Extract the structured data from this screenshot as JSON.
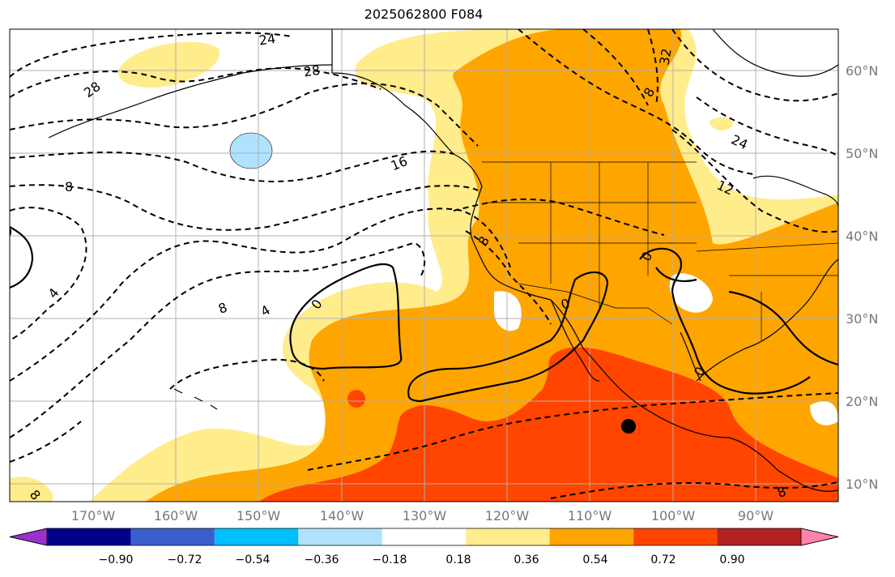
{
  "title": "2025062800 F084",
  "lat_labels": [
    "60°N",
    "50°N",
    "40°N",
    "30°N",
    "20°N",
    "10°N"
  ],
  "lon_labels": [
    "170°W",
    "160°W",
    "150°W",
    "140°W",
    "130°W",
    "120°W",
    "110°W",
    "100°W",
    "90°W"
  ],
  "colorbar": {
    "ticks": [
      "−0.90",
      "−0.72",
      "−0.54",
      "−0.36",
      "−0.18",
      "0.18",
      "0.36",
      "0.54",
      "0.72",
      "0.90"
    ],
    "colors": [
      "#9932cc",
      "#00008b",
      "#3a5fcd",
      "#00bfff",
      "#b0e2ff",
      "#ffffff",
      "#ffec8b",
      "#ffa500",
      "#ff4500",
      "#b22222",
      "#ff82ab"
    ]
  },
  "contour_labels": [
    "24",
    "28",
    "28",
    "32",
    "24",
    "16",
    "12",
    "8",
    "8",
    "0",
    "4",
    "8",
    "4",
    "0",
    "0",
    "0",
    "0",
    "8",
    "8",
    "8"
  ],
  "colors": {
    "fill_low": "#ffec8b",
    "fill_mid": "#ffa500",
    "fill_high": "#ff4500",
    "ice": "#b0e2ff"
  },
  "marker": {
    "name": "storm-center",
    "lon": -105,
    "lat": 17
  }
}
